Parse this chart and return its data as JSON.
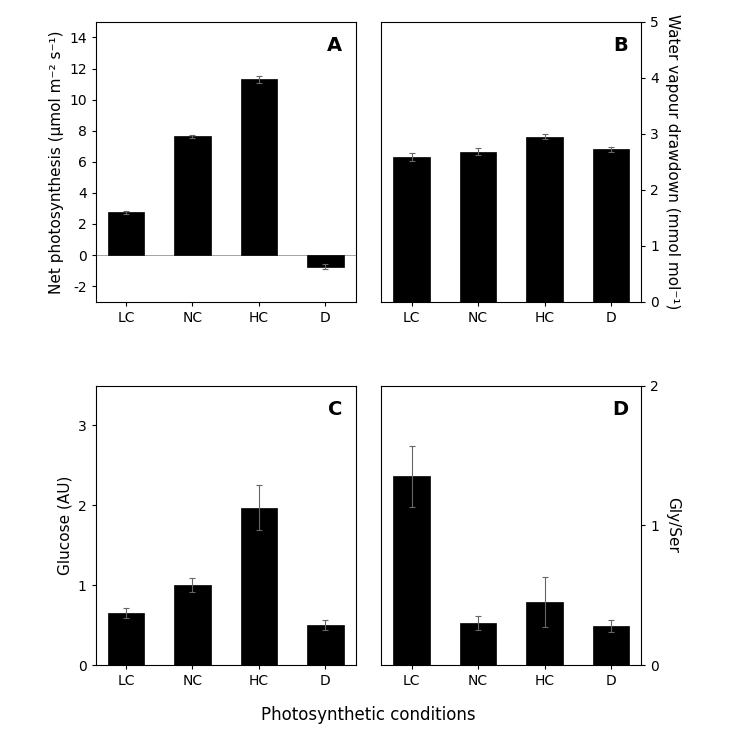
{
  "categories": [
    "LC",
    "NC",
    "HC",
    "D"
  ],
  "panel_A": {
    "label": "A",
    "values": [
      2.75,
      7.65,
      11.3,
      -0.75
    ],
    "errors": [
      0.1,
      0.1,
      0.2,
      0.15
    ],
    "ylabel": "Net photosynthesis (µmol m⁻² s⁻¹)",
    "ylim": [
      -3,
      15
    ],
    "yticks": [
      -2,
      0,
      2,
      4,
      6,
      8,
      10,
      12,
      14
    ],
    "side": "left"
  },
  "panel_B": {
    "label": "B",
    "values": [
      2.58,
      2.68,
      2.95,
      2.72
    ],
    "errors": [
      0.07,
      0.06,
      0.05,
      0.04
    ],
    "ylabel": "Water vapour drawdown (mmol mol⁻¹)",
    "ylim": [
      0,
      5
    ],
    "yticks": [
      0,
      1,
      2,
      3,
      4,
      5
    ],
    "side": "right"
  },
  "panel_C": {
    "label": "C",
    "values": [
      0.65,
      1.0,
      1.97,
      0.5
    ],
    "errors": [
      0.06,
      0.09,
      0.28,
      0.06
    ],
    "ylabel": "Glucose (AU)",
    "ylim": [
      0,
      3.5
    ],
    "yticks": [
      0,
      1,
      2,
      3
    ],
    "side": "left"
  },
  "panel_D": {
    "label": "D",
    "values": [
      1.35,
      0.3,
      0.45,
      0.28
    ],
    "errors": [
      0.22,
      0.05,
      0.18,
      0.04
    ],
    "ylabel": "Gly/Ser",
    "ylim": [
      0,
      2.0
    ],
    "yticks": [
      0,
      1,
      2
    ],
    "side": "right"
  },
  "bar_color": "#000000",
  "bar_width": 0.55,
  "xlabel": "Photosynthetic conditions",
  "background_color": "#ffffff",
  "label_fontsize": 11,
  "tick_fontsize": 10,
  "panel_label_fontsize": 14
}
